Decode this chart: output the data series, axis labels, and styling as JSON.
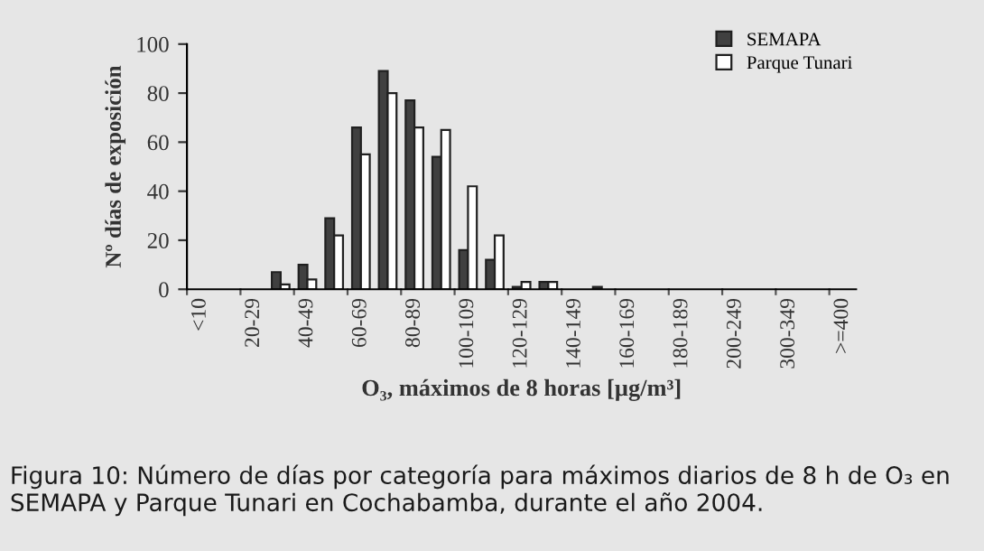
{
  "chart_data": {
    "type": "bar",
    "categories": [
      "<10",
      null,
      "20-29",
      null,
      "40-49",
      null,
      "60-69",
      null,
      "80-89",
      null,
      "100-109",
      null,
      "120-129",
      null,
      "140-149",
      null,
      "160-169",
      null,
      "180-189",
      null,
      "200-249",
      null,
      "300-349",
      null,
      ">=400"
    ],
    "series": [
      {
        "name": "SEMAPA",
        "color": "#404040",
        "values": [
          0,
          0,
          0,
          7,
          10,
          29,
          66,
          89,
          77,
          54,
          16,
          12,
          1,
          3,
          0,
          1,
          0,
          0,
          0,
          0,
          0,
          0,
          0,
          0,
          0
        ]
      },
      {
        "name": "Parque Tunari",
        "color": "#ffffff",
        "values": [
          0,
          0,
          0,
          2,
          4,
          22,
          55,
          80,
          66,
          65,
          42,
          22,
          3,
          3,
          0,
          0,
          0,
          0,
          0,
          0,
          0,
          0,
          0,
          0,
          0
        ]
      }
    ],
    "ylim": [
      0,
      100
    ],
    "yticks": [
      0,
      20,
      40,
      60,
      80,
      100
    ],
    "xlabel": "O₃, máximos de 8 horas [µg/m³]",
    "ylabel": "Nº días de exposición",
    "legend": "top right",
    "grid": false,
    "annotations": [
      "Figura 10: Número de días por categoría para máximos diarios de 8 h de O₃ en SEMAPA y Parque Tunari en Cochabamba, durante el año 2004."
    ]
  }
}
